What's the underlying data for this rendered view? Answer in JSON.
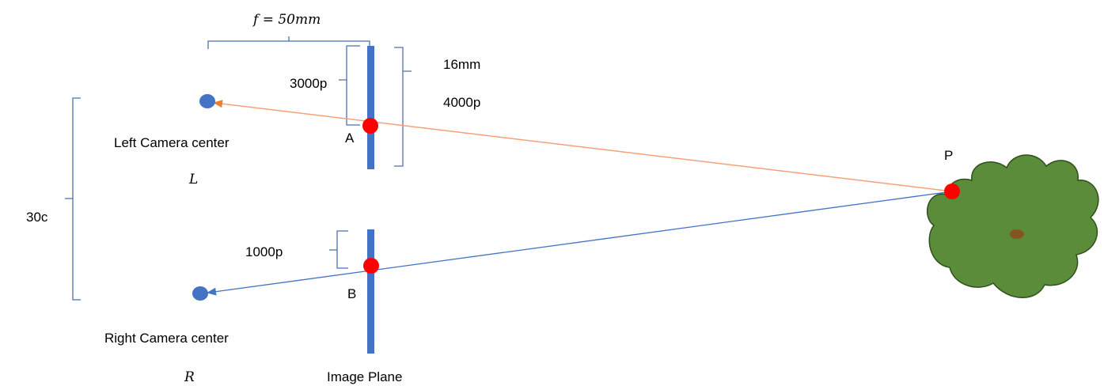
{
  "labels": {
    "focal_length": "f = 50mm",
    "sensor_mm": "16mm",
    "sensor_px": "4000p",
    "offset_left": "3000p",
    "offset_right": "1000p",
    "baseline": "30c",
    "left_camera": "Left Camera center",
    "left_symbol": "L",
    "right_camera": "Right Camera center",
    "right_symbol": "R",
    "point_a": "A",
    "point_b": "B",
    "point_p": "P",
    "image_plane": "Image Plane"
  },
  "colors": {
    "image_plane": "#4472c4",
    "camera_center": "#4472c4",
    "projection_point": "#ff0000",
    "left_ray": "#f4a27a",
    "right_ray": "#4472c4",
    "brace": "#4a72b0",
    "tree_fill": "#5b8c3a",
    "tree_outline": "#2f4f1e",
    "tree_spot": "#8b4a1a"
  },
  "icons": {
    "object": "tree-icon"
  }
}
